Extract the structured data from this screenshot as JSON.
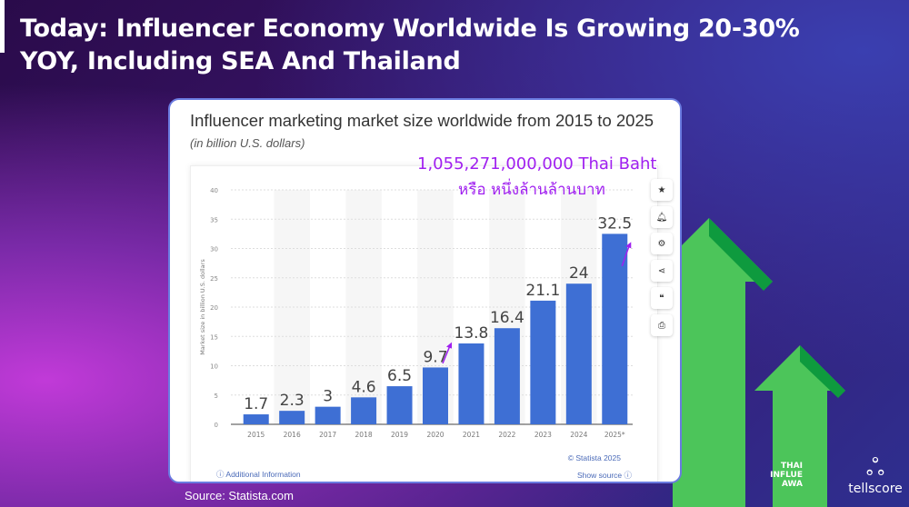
{
  "slide": {
    "title_line1": "Today: Influencer Economy Worldwide Is Growing 20-30%",
    "title_line2": "YOY, Including SEA And Thailand",
    "source": "Source: Statista.com"
  },
  "annotation": {
    "line1": "1,055,271,000,000 Thai Baht",
    "line2": "หรือ หนึ่งล้านล้านบาท",
    "color": "#a020f0"
  },
  "side_buttons": [
    "star-icon",
    "bell-icon",
    "gear-icon",
    "share-icon",
    "quote-icon",
    "print-icon"
  ],
  "footer": {
    "copyright": "© Statista 2025",
    "additional": "Additional Information",
    "show_source": "Show source"
  },
  "logos": {
    "tellscore": "tellscore",
    "awards": "THAI INFLUE AWA"
  },
  "chart_data": {
    "type": "bar",
    "title": "Influencer marketing market size worldwide from 2015 to 2025",
    "subtitle": "(in billion U.S. dollars)",
    "ylabel": "Market size in billion U.S. dollars",
    "xlabel": "",
    "categories": [
      "2015",
      "2016",
      "2017",
      "2018",
      "2019",
      "2020",
      "2021",
      "2022",
      "2023",
      "2024",
      "2025*"
    ],
    "values": [
      1.7,
      2.3,
      3,
      4.6,
      6.5,
      9.7,
      13.8,
      16.4,
      21.1,
      24,
      32.5
    ],
    "ylim": [
      0,
      40
    ],
    "yticks": [
      0,
      5,
      10,
      15,
      20,
      25,
      30,
      35,
      40
    ],
    "grid": true,
    "bar_color": "#3e6fd4"
  }
}
